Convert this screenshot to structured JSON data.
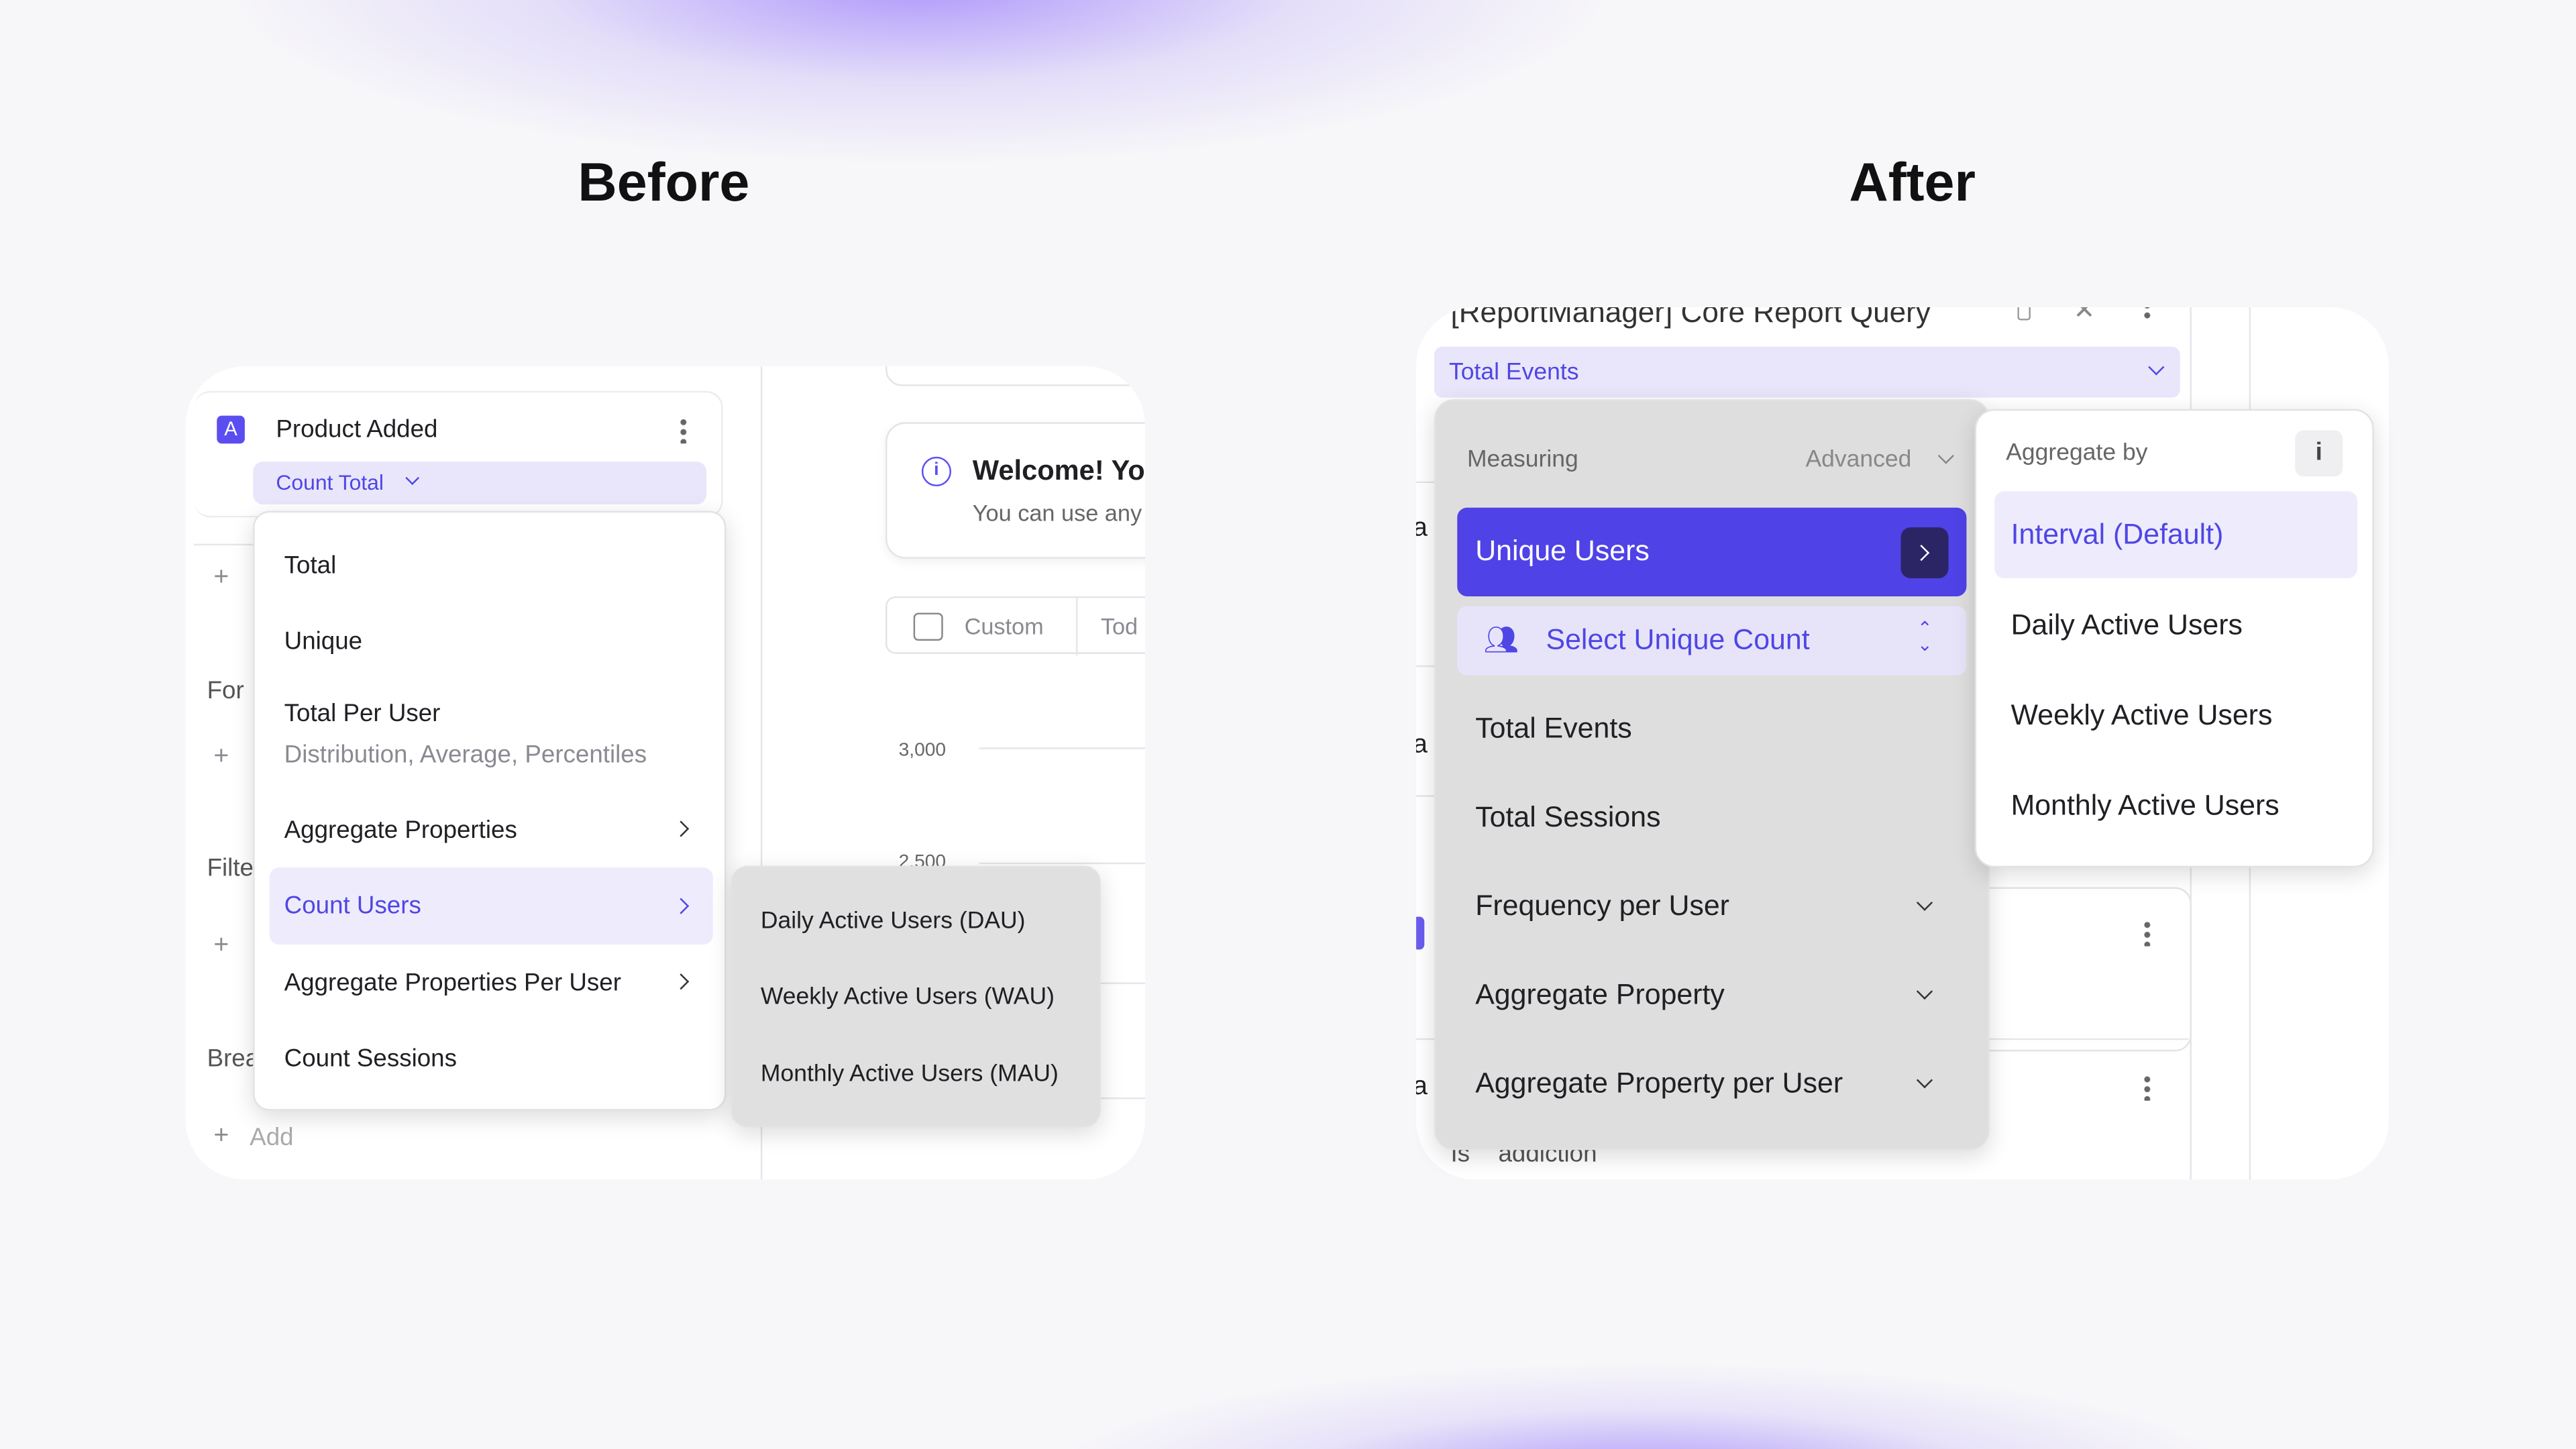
{
  "headings": {
    "before": "Before",
    "after": "After"
  },
  "before": {
    "event": {
      "badge": "A",
      "name": "Product Added",
      "measure": "Count Total"
    },
    "sidebar_fragments": {
      "add_plus": "+",
      "formula": "For",
      "filter": "Filte",
      "breakdown": "Brea",
      "add_label": "Add"
    },
    "menu": {
      "items": [
        {
          "label": "Total"
        },
        {
          "label": "Unique"
        },
        {
          "label": "Total Per User",
          "subtitle": "Distribution, Average, Percentiles"
        },
        {
          "label": "Aggregate Properties",
          "has_submenu": true
        },
        {
          "label": "Count Users",
          "has_submenu": true,
          "active": true
        },
        {
          "label": "Aggregate Properties Per User",
          "has_submenu": true
        },
        {
          "label": "Count Sessions"
        }
      ]
    },
    "submenu": {
      "items": [
        "Daily Active Users (DAU)",
        "Weekly Active Users (WAU)",
        "Monthly Active Users (MAU)"
      ]
    },
    "welcome": {
      "title": "Welcome! Yo",
      "body": "You can use any"
    },
    "date_range": {
      "custom": "Custom",
      "today": "Tod"
    },
    "chart": {
      "y_ticks": [
        "3,000",
        "2,500"
      ]
    }
  },
  "after": {
    "query_title": "[ReportManager] Core Report Query",
    "measure": "Total Events",
    "menu": {
      "header": "Measuring",
      "mode": "Advanced",
      "selected": "Unique Users",
      "select_count": "Select Unique Count",
      "items": [
        "Total Events",
        "Total Sessions",
        "Frequency per User",
        "Aggregate Property",
        "Aggregate Property per User"
      ]
    },
    "aggregate_panel": {
      "header": "Aggregate by",
      "info": "i",
      "items": [
        "Interval (Default)",
        "Daily Active Users",
        "Weekly Active Users",
        "Monthly Active Users"
      ],
      "active_index": 0
    },
    "background_fragments": {
      "letter": "a",
      "filter_op": "Is",
      "filter_value": "addiction"
    }
  },
  "colors": {
    "accent": "#4f46e5",
    "accent_light": "#e9e6fb",
    "dark_button": "#2b2566",
    "menu_gray": "#dedede"
  }
}
